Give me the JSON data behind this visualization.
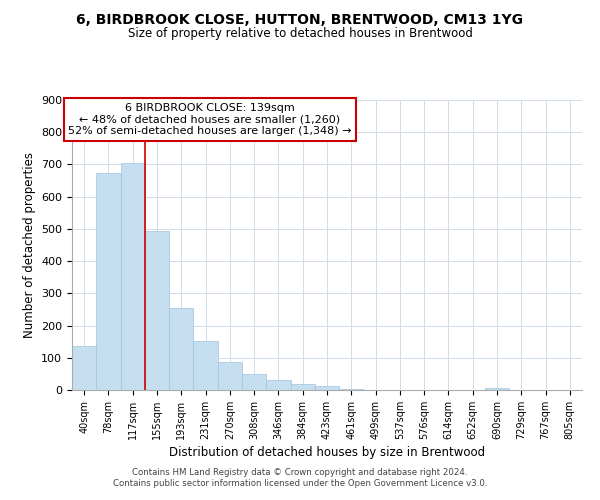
{
  "title": "6, BIRDBROOK CLOSE, HUTTON, BRENTWOOD, CM13 1YG",
  "subtitle": "Size of property relative to detached houses in Brentwood",
  "xlabel": "Distribution of detached houses by size in Brentwood",
  "ylabel": "Number of detached properties",
  "bar_color": "#c5dff0",
  "bar_edge_color": "#a0c4dc",
  "bin_labels": [
    "40sqm",
    "78sqm",
    "117sqm",
    "155sqm",
    "193sqm",
    "231sqm",
    "270sqm",
    "308sqm",
    "346sqm",
    "384sqm",
    "423sqm",
    "461sqm",
    "499sqm",
    "537sqm",
    "576sqm",
    "614sqm",
    "652sqm",
    "690sqm",
    "729sqm",
    "767sqm",
    "805sqm"
  ],
  "bar_heights": [
    137,
    675,
    706,
    493,
    253,
    153,
    86,
    51,
    30,
    19,
    12,
    4,
    1,
    0,
    0,
    0,
    0,
    5,
    0,
    0,
    0
  ],
  "ylim": [
    0,
    900
  ],
  "yticks": [
    0,
    100,
    200,
    300,
    400,
    500,
    600,
    700,
    800,
    900
  ],
  "property_line_x": 2.5,
  "annotation_title": "6 BIRDBROOK CLOSE: 139sqm",
  "annotation_line1": "← 48% of detached houses are smaller (1,260)",
  "annotation_line2": "52% of semi-detached houses are larger (1,348) →",
  "annotation_box_color": "#ffffff",
  "annotation_box_edge": "#cc0000",
  "vline_color": "#cc0000",
  "footer_line1": "Contains HM Land Registry data © Crown copyright and database right 2024.",
  "footer_line2": "Contains public sector information licensed under the Open Government Licence v3.0.",
  "background_color": "#ffffff",
  "grid_color": "#d0dce8"
}
